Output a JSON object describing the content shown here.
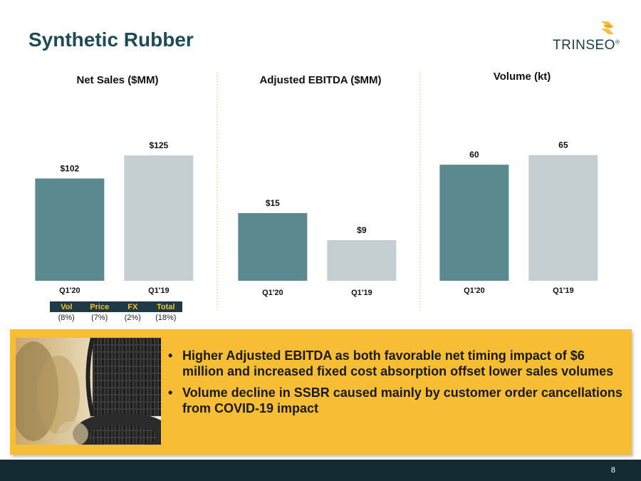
{
  "slide": {
    "title": "Synthetic Rubber",
    "page_number": "8"
  },
  "logo": {
    "text": "TRINSEO",
    "tm": "®",
    "colors": {
      "mark": "#f5c232",
      "text": "#1e3a44"
    }
  },
  "colors": {
    "primary_bar": "#5a8a8f",
    "secondary_bar": "#c5cfd1",
    "title": "#1e4b56",
    "panel": "#f7bd35",
    "footer": "#152b33"
  },
  "chart_data": [
    {
      "type": "bar",
      "title": "Net Sales ($MM)",
      "categories": [
        "Q1'20",
        "Q1'19"
      ],
      "values": [
        102,
        125
      ],
      "data_labels": [
        "$102",
        "$125"
      ],
      "ylim": [
        0,
        135
      ],
      "grid": false,
      "legend": "none"
    },
    {
      "type": "bar",
      "title": "Adjusted EBITDA ($MM)",
      "categories": [
        "Q1'20",
        "Q1'19"
      ],
      "values": [
        15,
        9
      ],
      "data_labels": [
        "$15",
        "$9"
      ],
      "ylim": [
        0,
        30
      ],
      "grid": false,
      "legend": "none"
    },
    {
      "type": "bar",
      "title": "Volume (kt)",
      "categories": [
        "Q1'20",
        "Q1'19"
      ],
      "values": [
        60,
        65
      ],
      "data_labels": [
        "60",
        "65"
      ],
      "ylim": [
        0,
        70
      ],
      "grid": false,
      "legend": "none"
    }
  ],
  "bridge": {
    "headers": [
      "Vol",
      "Price",
      "FX",
      "Total"
    ],
    "values": [
      "(8%)",
      "(7%)",
      "(2%)",
      "(18%)"
    ]
  },
  "panel": {
    "photo": "tires-image",
    "bullets": [
      "Higher Adjusted EBITDA as both favorable net timing impact of $6 million and increased fixed cost absorption offset lower sales volumes",
      "Volume decline in SSBR caused mainly by customer order cancellations from COVID-19 impact"
    ]
  }
}
